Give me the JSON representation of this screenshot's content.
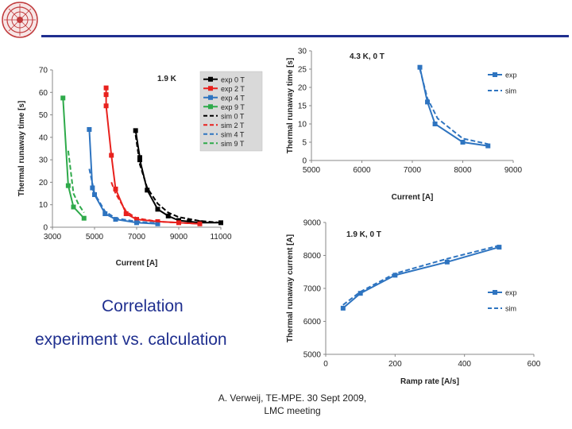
{
  "slide": {
    "caption_line1": "Correlation",
    "caption_line2": "experiment vs. calculation",
    "footer_line1": "A. Verweij, TE-MPE. 30 Sept 2009,",
    "footer_line2": "LMC meeting",
    "accent_color": "#1f2f8f"
  },
  "chart_data": [
    {
      "type": "line",
      "title": "1.9 K",
      "xlabel": "Current [A]",
      "ylabel": "Thermal runaway time [s]",
      "xlim": [
        3000,
        11000
      ],
      "ylim": [
        0,
        70
      ],
      "xticks": [
        3000,
        5000,
        7000,
        9000,
        11000
      ],
      "yticks": [
        0,
        10,
        20,
        30,
        40,
        50,
        60,
        70
      ],
      "legend_position": "right",
      "series": [
        {
          "name": "exp 0 T",
          "color": "#000000",
          "dash": false,
          "marker": true,
          "x": [
            6950,
            7150,
            7150,
            7500,
            8000,
            8500,
            9000,
            9500,
            10000,
            11000
          ],
          "y": [
            43,
            31,
            30,
            16.5,
            8,
            5,
            3,
            2.5,
            2,
            2
          ]
        },
        {
          "name": "exp 2 T",
          "color": "#e8211d",
          "dash": false,
          "marker": true,
          "x": [
            5550,
            5550,
            5550,
            5800,
            6000,
            6500,
            7000,
            8000,
            9000,
            10000
          ],
          "y": [
            62,
            59,
            54,
            32,
            17,
            6,
            3.5,
            2.5,
            2,
            1.5
          ]
        },
        {
          "name": "exp 4 T",
          "color": "#2e74c0",
          "dash": false,
          "marker": true,
          "x": [
            4750,
            4900,
            5000,
            5500,
            6000,
            7000,
            8000
          ],
          "y": [
            43.5,
            17.5,
            14.5,
            6,
            3.5,
            2,
            1.5
          ]
        },
        {
          "name": "exp 9 T",
          "color": "#2eaa4a",
          "dash": false,
          "marker": true,
          "x": [
            3500,
            3750,
            4000,
            4500
          ],
          "y": [
            57.5,
            18.5,
            9,
            4
          ]
        },
        {
          "name": "sim 0 T",
          "color": "#000000",
          "dash": true,
          "marker": false,
          "x": [
            6950,
            7150,
            7500,
            8000,
            8500,
            9000,
            10000,
            11000
          ],
          "y": [
            41,
            28,
            17.5,
            10.5,
            6.5,
            4.5,
            2.8,
            2
          ]
        },
        {
          "name": "sim 2 T",
          "color": "#e8211d",
          "dash": true,
          "marker": false,
          "x": [
            5800,
            6000,
            6500,
            7000,
            8000,
            9000,
            10000
          ],
          "y": [
            20,
            15,
            7,
            4,
            2.5,
            2,
            1.5
          ]
        },
        {
          "name": "sim 4 T",
          "color": "#2e74c0",
          "dash": true,
          "marker": false,
          "x": [
            4750,
            5000,
            5500,
            6000,
            7000,
            8000
          ],
          "y": [
            26,
            15,
            7,
            4,
            2.5,
            1.8
          ]
        },
        {
          "name": "sim 9 T",
          "color": "#2eaa4a",
          "dash": true,
          "marker": false,
          "x": [
            3750,
            4000,
            4250,
            4500
          ],
          "y": [
            34,
            15,
            10,
            6.5
          ]
        }
      ]
    },
    {
      "type": "line",
      "title": "4.3 K, 0 T",
      "xlabel": "Current [A]",
      "ylabel": "Thermal runaway time [s]",
      "xlim": [
        5000,
        9000
      ],
      "ylim": [
        0,
        30
      ],
      "xticks": [
        5000,
        6000,
        7000,
        8000,
        9000
      ],
      "yticks": [
        0,
        5,
        10,
        15,
        20,
        25,
        30
      ],
      "legend_position": "top-right",
      "series": [
        {
          "name": "exp",
          "color": "#2e74c0",
          "dash": false,
          "marker": true,
          "x": [
            7150,
            7300,
            7450,
            8000,
            8500
          ],
          "y": [
            25.5,
            16,
            10,
            5,
            4
          ]
        },
        {
          "name": "sim",
          "color": "#2e74c0",
          "dash": true,
          "marker": false,
          "x": [
            7150,
            7300,
            7500,
            8000,
            8500
          ],
          "y": [
            25,
            17,
            11.5,
            6,
            4.5
          ]
        }
      ]
    },
    {
      "type": "line",
      "title": "1.9 K, 0 T",
      "xlabel": "Ramp rate [A/s]",
      "ylabel": "Thermal runaway current [A]",
      "xlim": [
        0,
        600
      ],
      "ylim": [
        5000,
        9000
      ],
      "xticks": [
        0,
        200,
        400,
        600
      ],
      "yticks": [
        5000,
        6000,
        7000,
        8000,
        9000
      ],
      "legend_position": "right",
      "series": [
        {
          "name": "exp",
          "color": "#2e74c0",
          "dash": false,
          "marker": true,
          "x": [
            50,
            100,
            200,
            350,
            500
          ],
          "y": [
            6400,
            6850,
            7400,
            7800,
            8250
          ]
        },
        {
          "name": "sim",
          "color": "#2e74c0",
          "dash": true,
          "marker": false,
          "x": [
            50,
            100,
            200,
            350,
            500
          ],
          "y": [
            6500,
            6900,
            7450,
            7900,
            8300
          ]
        }
      ]
    }
  ]
}
